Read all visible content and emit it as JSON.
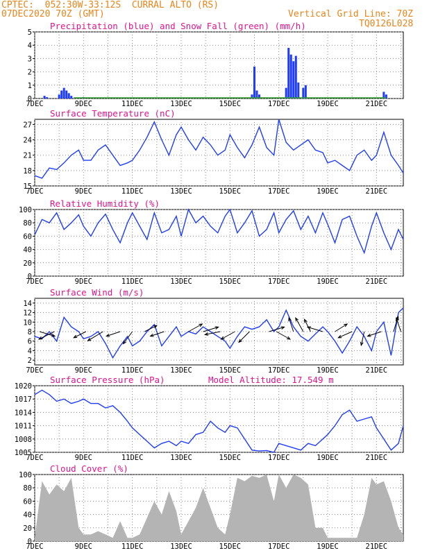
{
  "header": {
    "line1": "CPTEC:  052:30W-33:12S  CURRAL ALTO (RS)",
    "line2": "07DEC2020 70Z (GMT)",
    "right1": "Vertical Grid Line: 70Z",
    "right2": "TQ0126L028"
  },
  "colors": {
    "header": "#e8841a",
    "title": "#e0148c",
    "line": "#1e3cff",
    "precip": "#1e3cff",
    "snow": "#2ca02c",
    "cloud": "#b4b4b4"
  },
  "x_ticks": [
    "7DEC",
    "9DEC",
    "11DEC",
    "13DEC",
    "15DEC",
    "17DEC",
    "19DEC",
    "21DEC"
  ],
  "chart_data": [
    {
      "type": "bar",
      "title": "Precipitation (blue) and Snow Fall (green) (mm/h)",
      "ylim": [
        0,
        5
      ],
      "yticks": [
        "0",
        "1",
        "2",
        "3",
        "4",
        "5"
      ],
      "series": [
        {
          "name": "Precipitation",
          "x": [
            7.4,
            7.5,
            8.0,
            8.1,
            8.2,
            8.3,
            8.4,
            8.5,
            9.0,
            15.9,
            16.0,
            16.1,
            16.2,
            17.3,
            17.4,
            17.5,
            17.6,
            17.7,
            17.8,
            18.0,
            18.1,
            21.3,
            21.4
          ],
          "values": [
            0.2,
            0.1,
            0.3,
            0.6,
            0.8,
            0.6,
            0.4,
            0.2,
            0.1,
            0.3,
            2.4,
            0.6,
            0.3,
            0.8,
            3.8,
            3.3,
            2.8,
            3.2,
            1.2,
            0.8,
            1.0,
            0.5,
            0.3
          ]
        },
        {
          "name": "Snow Fall",
          "x": [],
          "values": []
        }
      ]
    },
    {
      "type": "line",
      "title": "Surface Temperature (nC)",
      "ylim": [
        15,
        28
      ],
      "yticks": [
        "15",
        "18",
        "21",
        "24",
        "27"
      ],
      "x": [
        7.0,
        7.3,
        7.6,
        7.9,
        8.2,
        8.5,
        8.8,
        9.0,
        9.3,
        9.6,
        9.9,
        10.2,
        10.5,
        10.8,
        11.0,
        11.3,
        11.6,
        11.9,
        12.2,
        12.5,
        12.8,
        13.0,
        13.3,
        13.6,
        13.9,
        14.2,
        14.5,
        14.8,
        15.0,
        15.3,
        15.6,
        15.9,
        16.2,
        16.5,
        16.8,
        17.0,
        17.3,
        17.6,
        17.9,
        18.2,
        18.5,
        18.8,
        19.0,
        19.3,
        19.6,
        19.9,
        20.2,
        20.5,
        20.8,
        21.0,
        21.3,
        21.6,
        21.9,
        22.1
      ],
      "values": [
        17,
        16.5,
        18.5,
        18.2,
        19.5,
        21,
        22,
        20,
        20,
        22,
        23,
        21,
        19,
        19.5,
        20,
        22,
        24.5,
        27.5,
        24,
        21,
        25,
        26.5,
        24,
        22,
        24.5,
        23,
        21,
        22,
        25,
        22.5,
        20.5,
        23,
        26.5,
        22.5,
        21,
        28,
        23.5,
        22,
        23,
        24,
        22,
        21.5,
        19.5,
        20,
        19,
        18,
        21,
        22,
        20,
        21,
        25.5,
        21,
        19,
        17.5
      ]
    },
    {
      "type": "line",
      "title": "Relative Humidity (%)",
      "ylim": [
        0,
        100
      ],
      "yticks": [
        "0",
        "20",
        "40",
        "60",
        "80",
        "100"
      ],
      "x": [
        7.0,
        7.3,
        7.6,
        7.9,
        8.2,
        8.5,
        8.8,
        9.0,
        9.3,
        9.6,
        9.9,
        10.2,
        10.5,
        10.8,
        11.0,
        11.3,
        11.6,
        11.9,
        12.2,
        12.5,
        12.8,
        13.0,
        13.3,
        13.6,
        13.9,
        14.2,
        14.5,
        14.8,
        15.0,
        15.3,
        15.6,
        15.9,
        16.2,
        16.5,
        16.8,
        17.0,
        17.3,
        17.6,
        17.9,
        18.2,
        18.5,
        18.8,
        19.0,
        19.3,
        19.6,
        19.9,
        20.2,
        20.5,
        20.8,
        21.0,
        21.3,
        21.6,
        21.9,
        22.1
      ],
      "values": [
        62,
        85,
        80,
        95,
        70,
        80,
        92,
        75,
        60,
        80,
        93,
        70,
        50,
        80,
        95,
        75,
        55,
        95,
        65,
        70,
        90,
        60,
        100,
        80,
        90,
        75,
        65,
        90,
        100,
        65,
        80,
        98,
        60,
        70,
        95,
        65,
        85,
        98,
        70,
        90,
        65,
        95,
        78,
        50,
        85,
        90,
        60,
        35,
        75,
        95,
        65,
        40,
        70,
        55
      ]
    },
    {
      "type": "line",
      "title": "Surface Wind (m/s)",
      "ylim": [
        1,
        15
      ],
      "yticks": [
        "2",
        "4",
        "6",
        "8",
        "10",
        "12",
        "14"
      ],
      "x": [
        7.0,
        7.3,
        7.6,
        7.9,
        8.2,
        8.5,
        8.8,
        9.0,
        9.3,
        9.6,
        9.9,
        10.2,
        10.5,
        10.8,
        11.0,
        11.3,
        11.6,
        11.9,
        12.2,
        12.5,
        12.8,
        13.0,
        13.3,
        13.6,
        13.9,
        14.2,
        14.5,
        14.8,
        15.0,
        15.3,
        15.6,
        15.9,
        16.2,
        16.5,
        16.8,
        17.0,
        17.3,
        17.6,
        17.9,
        18.2,
        18.5,
        18.8,
        19.0,
        19.3,
        19.6,
        19.9,
        20.2,
        20.5,
        20.8,
        21.0,
        21.3,
        21.6,
        21.9,
        22.1
      ],
      "values": [
        7,
        6.5,
        8,
        6,
        11,
        9,
        8,
        6.5,
        7,
        8,
        5.5,
        2.5,
        5,
        7,
        5,
        6,
        8,
        9.5,
        5,
        7,
        9,
        7,
        8,
        7.5,
        9,
        8,
        7,
        6,
        4.5,
        7,
        9,
        8.5,
        9,
        10.5,
        8,
        9,
        12.5,
        9,
        7,
        6,
        7.5,
        9,
        8,
        6,
        3.5,
        6,
        9,
        7,
        4,
        8,
        10,
        3,
        12,
        13
      ]
    },
    {
      "type": "line",
      "title": "Surface Pressure (hPa)",
      "annotation": "Model Altitude: 17.549 m",
      "ylim": [
        1005,
        1020
      ],
      "yticks": [
        "1005",
        "1008",
        "1011",
        "1014",
        "1017",
        "1020"
      ],
      "x": [
        7.0,
        7.3,
        7.6,
        7.9,
        8.2,
        8.5,
        8.8,
        9.0,
        9.3,
        9.6,
        9.9,
        10.2,
        10.5,
        10.8,
        11.0,
        11.3,
        11.6,
        11.9,
        12.2,
        12.5,
        12.8,
        13.0,
        13.3,
        13.6,
        13.9,
        14.2,
        14.5,
        14.8,
        15.0,
        15.3,
        15.6,
        15.9,
        16.2,
        16.5,
        16.8,
        17.0,
        17.3,
        17.6,
        17.9,
        18.2,
        18.5,
        18.8,
        19.0,
        19.3,
        19.6,
        19.9,
        20.2,
        20.5,
        20.8,
        21.0,
        21.3,
        21.6,
        21.9,
        22.1
      ],
      "values": [
        1018,
        1019,
        1018,
        1016.5,
        1017,
        1016,
        1016.5,
        1017,
        1016,
        1016,
        1015,
        1015.5,
        1014,
        1012,
        1010.5,
        1009,
        1007.5,
        1006,
        1007,
        1007.5,
        1006.5,
        1007.5,
        1007,
        1009,
        1009.5,
        1012,
        1010.5,
        1009.5,
        1011,
        1010.5,
        1008,
        1005.5,
        1005.3,
        1005.4,
        1005,
        1007,
        1006.5,
        1006,
        1005.5,
        1007,
        1006.5,
        1008,
        1009,
        1011,
        1013.5,
        1014.5,
        1012,
        1012.5,
        1013,
        1010.5,
        1008,
        1005.5,
        1007,
        1011
      ],
      "arrows_note": "wind vectors plotted on wind panel"
    },
    {
      "type": "area",
      "title": "Cloud Cover (%)",
      "ylim": [
        0,
        100
      ],
      "yticks": [
        "0",
        "20",
        "40",
        "60",
        "80",
        "100"
      ],
      "x": [
        7.0,
        7.3,
        7.6,
        7.9,
        8.2,
        8.5,
        8.8,
        9.0,
        9.3,
        9.6,
        9.9,
        10.2,
        10.5,
        10.8,
        11.0,
        11.3,
        11.6,
        11.9,
        12.2,
        12.5,
        12.8,
        13.0,
        13.3,
        13.6,
        13.9,
        14.2,
        14.5,
        14.8,
        15.0,
        15.3,
        15.6,
        15.9,
        16.2,
        16.5,
        16.8,
        17.0,
        17.3,
        17.6,
        17.9,
        18.2,
        18.5,
        18.8,
        19.0,
        19.3,
        19.6,
        19.9,
        20.2,
        20.5,
        20.8,
        21.0,
        21.3,
        21.6,
        21.9,
        22.1
      ],
      "values": [
        5,
        90,
        70,
        85,
        75,
        95,
        20,
        10,
        10,
        15,
        10,
        5,
        30,
        5,
        5,
        10,
        35,
        60,
        40,
        75,
        45,
        10,
        30,
        50,
        80,
        50,
        20,
        10,
        40,
        95,
        90,
        98,
        95,
        100,
        60,
        100,
        80,
        100,
        95,
        85,
        20,
        20,
        5,
        5,
        5,
        5,
        5,
        40,
        95,
        85,
        90,
        60,
        20,
        10
      ]
    }
  ],
  "wind_arrows": [
    {
      "x": 7.2,
      "dx": 1,
      "dy": -0.3
    },
    {
      "x": 7.8,
      "dx": -1,
      "dy": -0.5
    },
    {
      "x": 9.1,
      "dx": -0.8,
      "dy": -0.4
    },
    {
      "x": 9.8,
      "dx": -1,
      "dy": -0.6
    },
    {
      "x": 10.5,
      "dx": -0.9,
      "dy": -0.3
    },
    {
      "x": 11.0,
      "dx": -0.6,
      "dy": -0.8
    },
    {
      "x": 11.5,
      "dx": 0.8,
      "dy": 0.4
    },
    {
      "x": 12.3,
      "dx": -0.9,
      "dy": -0.3
    },
    {
      "x": 13.3,
      "dx": 0.9,
      "dy": 0.5
    },
    {
      "x": 13.9,
      "dx": 1,
      "dy": 0.3
    },
    {
      "x": 14.6,
      "dx": -1,
      "dy": -0.2
    },
    {
      "x": 15.2,
      "dx": -0.9,
      "dy": -0.5
    },
    {
      "x": 15.8,
      "dx": -0.7,
      "dy": -0.7
    },
    {
      "x": 16.6,
      "dx": 1,
      "dy": 0.3
    },
    {
      "x": 16.9,
      "dx": 0.9,
      "dy": -0.5
    },
    {
      "x": 17.6,
      "dx": -0.3,
      "dy": 0.9
    },
    {
      "x": 18.0,
      "dx": -0.5,
      "dy": 0.9
    },
    {
      "x": 18.3,
      "dx": -0.4,
      "dy": 0.8
    },
    {
      "x": 18.8,
      "dx": -1,
      "dy": 0.3
    },
    {
      "x": 19.3,
      "dx": 0.8,
      "dy": 0.5
    },
    {
      "x": 20.0,
      "dx": -0.9,
      "dy": -0.4
    },
    {
      "x": 20.5,
      "dx": -0.2,
      "dy": -0.9
    },
    {
      "x": 21.2,
      "dx": -0.9,
      "dy": -0.3
    },
    {
      "x": 21.7,
      "dx": 0.3,
      "dy": 1
    },
    {
      "x": 22.0,
      "dx": -0.3,
      "dy": 0.9
    }
  ]
}
